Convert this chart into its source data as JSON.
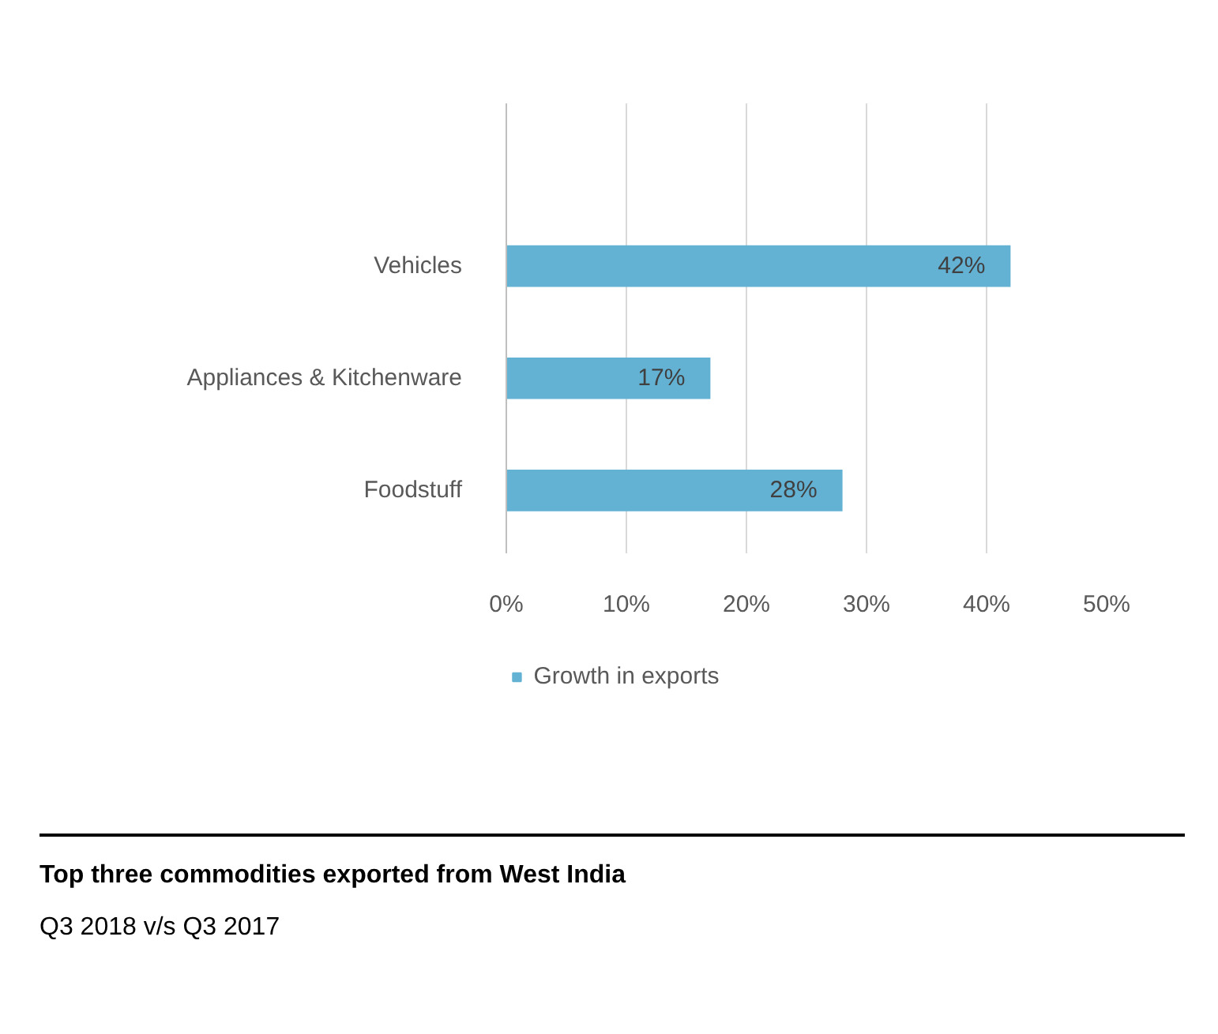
{
  "chart_data": {
    "type": "bar",
    "orientation": "horizontal",
    "title": "Top three commodities exported from West India",
    "subtitle": "Q3 2018 v/s Q3 2017",
    "categories": [
      "Vehicles",
      "Appliances & Kitchenware",
      "Foodstuff"
    ],
    "series": [
      {
        "name": "Growth in exports",
        "color": "#63b2d4",
        "values": [
          42,
          17,
          28
        ]
      }
    ],
    "value_labels": [
      "42%",
      "17%",
      "28%"
    ],
    "xlim": [
      0,
      50
    ],
    "xticks": [
      {
        "value": 0,
        "label": "0%"
      },
      {
        "value": 10,
        "label": "10%"
      },
      {
        "value": 20,
        "label": "20%"
      },
      {
        "value": 30,
        "label": "30%"
      },
      {
        "value": 40,
        "label": "40%"
      },
      {
        "value": 50,
        "label": "50%"
      }
    ],
    "grid": "x",
    "legend": "bottom"
  }
}
